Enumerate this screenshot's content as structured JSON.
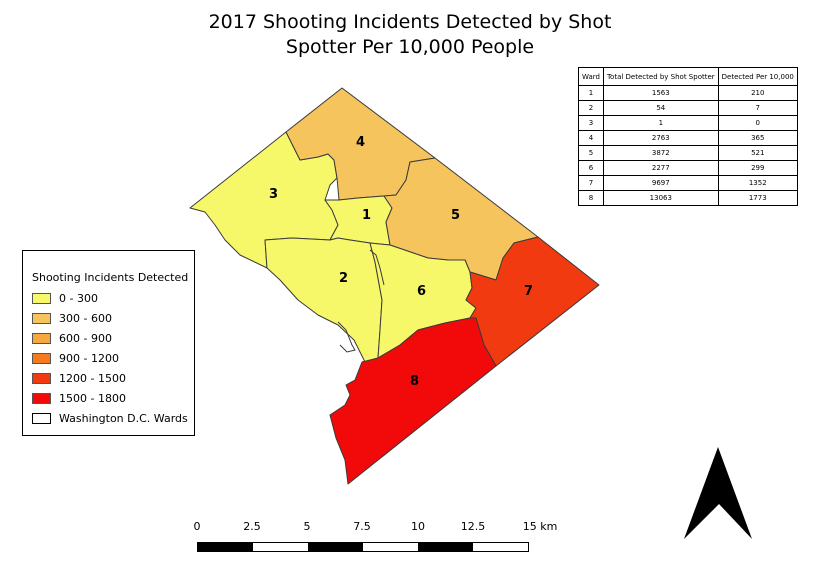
{
  "title": {
    "line1": "2017 Shooting Incidents Detected by Shot",
    "line2": "Spotter Per 10,000 People"
  },
  "table": {
    "headers": [
      "Ward",
      "Total Detected by Shot Spotter",
      "Detected Per 10,000"
    ],
    "rows": [
      [
        "1",
        "1563",
        "210"
      ],
      [
        "2",
        "54",
        "7"
      ],
      [
        "3",
        "1",
        "0"
      ],
      [
        "4",
        "2763",
        "365"
      ],
      [
        "5",
        "3872",
        "521"
      ],
      [
        "6",
        "2277",
        "299"
      ],
      [
        "7",
        "9697",
        "1352"
      ],
      [
        "8",
        "13063",
        "1773"
      ]
    ]
  },
  "legend": {
    "title": "Shooting Incidents Detected",
    "classes": [
      {
        "label": "0 - 300",
        "color": "#f7f76a"
      },
      {
        "label": "300 - 600",
        "color": "#f5c45c"
      },
      {
        "label": "600 - 900",
        "color": "#f5a83e"
      },
      {
        "label": "900 - 1200",
        "color": "#f57a1e"
      },
      {
        "label": "1200 - 1500",
        "color": "#f23a10"
      },
      {
        "label": "1500 - 1800",
        "color": "#f20a0a"
      }
    ],
    "boundary_label": "Washington D.C. Wards"
  },
  "wards": [
    {
      "label": "1",
      "rate": 210
    },
    {
      "label": "2",
      "rate": 7
    },
    {
      "label": "3",
      "rate": 0
    },
    {
      "label": "4",
      "rate": 365
    },
    {
      "label": "5",
      "rate": 521
    },
    {
      "label": "6",
      "rate": 299
    },
    {
      "label": "7",
      "rate": 1352
    },
    {
      "label": "8",
      "rate": 1773
    }
  ],
  "scale_bar": {
    "ticks": [
      "0",
      "2.5",
      "5",
      "7.5",
      "10",
      "12.5",
      "15 km"
    ]
  },
  "north_arrow": "north-arrow-icon"
}
